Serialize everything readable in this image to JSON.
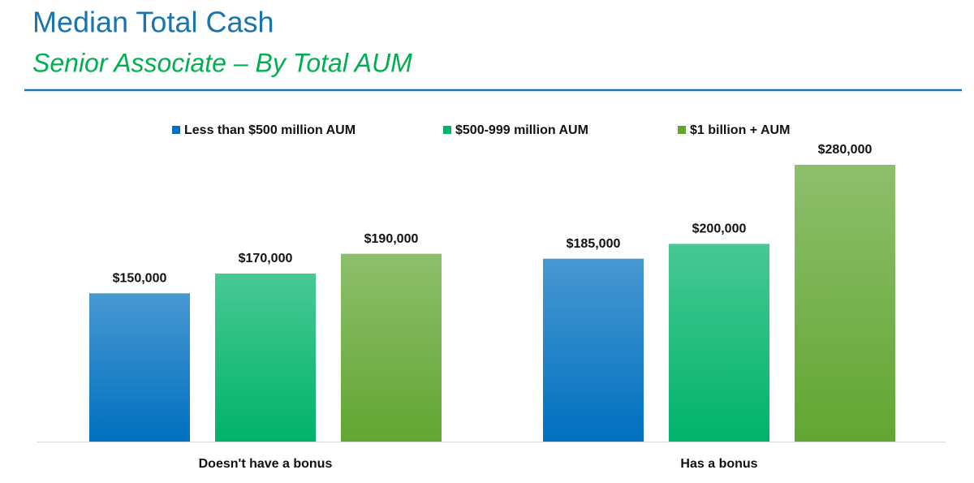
{
  "chart_data": {
    "type": "bar",
    "title": "Median Total Cash",
    "subtitle": "Senior Associate – By Total AUM",
    "categories": [
      "Doesn't have a bonus",
      "Has a bonus"
    ],
    "series": [
      {
        "name": "Less than $500 million AUM",
        "color": "#0070c0",
        "values": [
          150000,
          185000
        ],
        "value_labels": [
          "$150,000",
          "$185,000"
        ]
      },
      {
        "name": "$500-999 million AUM",
        "color": "#00b36b",
        "values": [
          170000,
          200000
        ],
        "value_labels": [
          "$170,000",
          "$200,000"
        ]
      },
      {
        "name": "$1 billion + AUM",
        "color": "#62a632",
        "values": [
          190000,
          280000
        ],
        "value_labels": [
          "$190,000",
          "$280,000"
        ]
      }
    ]
  }
}
